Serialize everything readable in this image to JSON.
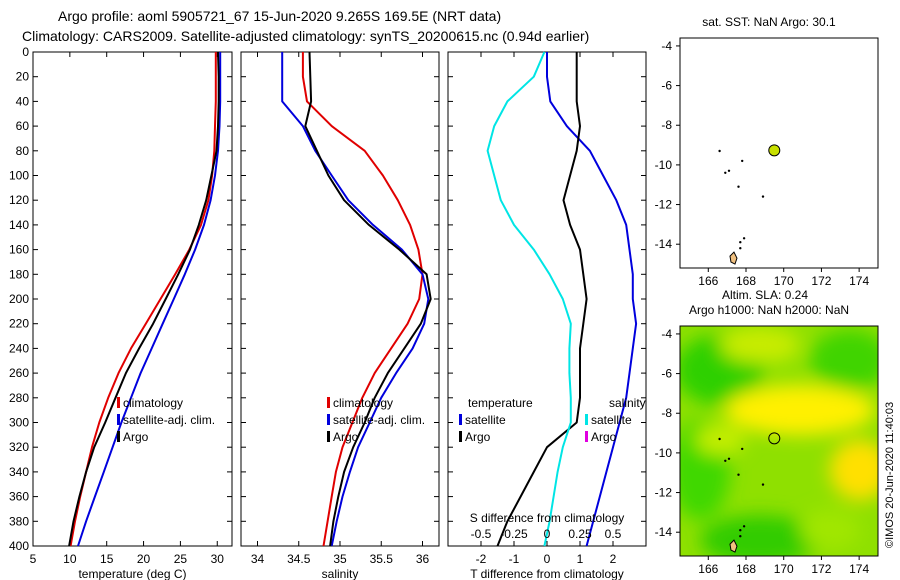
{
  "header": {
    "line1": "Argo profile: aoml 5905721_67 15-Jun-2020 9.265S 169.5E (NRT data)",
    "line2": "Climatology: CARS2009. Satellite-adjusted climatology: synTS_20200615.nc (0.94d earlier)"
  },
  "side_stamp": "©IMOS 20-Jun-2020 11:40:03",
  "colors": {
    "red": "#e00000",
    "blue": "#0000dd",
    "black": "#000000",
    "cyan": "#00e5e5",
    "magenta": "#e000e0",
    "marker": "#c8e000"
  },
  "chart_data": [
    {
      "id": "temperature",
      "type": "line",
      "xlabel": "temperature (deg C)",
      "xlim": [
        5,
        32
      ],
      "xticks": [
        5,
        10,
        15,
        20,
        25,
        30
      ],
      "ylim": [
        0,
        400
      ],
      "yticks": [
        0,
        20,
        40,
        60,
        80,
        100,
        120,
        140,
        160,
        180,
        200,
        220,
        240,
        260,
        280,
        300,
        320,
        340,
        360,
        380,
        400
      ],
      "legend": [
        {
          "label": "climatology",
          "color": "red"
        },
        {
          "label": "satellite-adj. clim.",
          "color": "blue"
        },
        {
          "label": "Argo",
          "color": "black"
        }
      ],
      "series": [
        {
          "name": "climatology",
          "color": "red",
          "points": [
            [
              29.8,
              0
            ],
            [
              29.8,
              20
            ],
            [
              29.8,
              40
            ],
            [
              29.7,
              60
            ],
            [
              29.6,
              80
            ],
            [
              29.3,
              100
            ],
            [
              28.8,
              120
            ],
            [
              27.8,
              140
            ],
            [
              26.2,
              160
            ],
            [
              24.3,
              180
            ],
            [
              22.3,
              200
            ],
            [
              20.3,
              220
            ],
            [
              18.3,
              240
            ],
            [
              16.6,
              260
            ],
            [
              15.2,
              280
            ],
            [
              14.0,
              300
            ],
            [
              13.0,
              320
            ],
            [
              12.2,
              340
            ],
            [
              11.4,
              360
            ],
            [
              10.7,
              380
            ],
            [
              10.1,
              400
            ]
          ]
        },
        {
          "name": "satellite-adj. clim.",
          "color": "blue",
          "points": [
            [
              30.4,
              0
            ],
            [
              30.4,
              20
            ],
            [
              30.4,
              40
            ],
            [
              30.3,
              60
            ],
            [
              30.1,
              80
            ],
            [
              29.7,
              100
            ],
            [
              29.1,
              120
            ],
            [
              28.2,
              140
            ],
            [
              27.0,
              160
            ],
            [
              25.6,
              180
            ],
            [
              24.1,
              200
            ],
            [
              22.6,
              220
            ],
            [
              21.1,
              240
            ],
            [
              19.6,
              260
            ],
            [
              18.3,
              280
            ],
            [
              17.0,
              300
            ],
            [
              15.8,
              320
            ],
            [
              14.6,
              340
            ],
            [
              13.4,
              360
            ],
            [
              12.2,
              380
            ],
            [
              11.1,
              400
            ]
          ]
        },
        {
          "name": "Argo",
          "color": "black",
          "points": [
            [
              30.1,
              0
            ],
            [
              30.2,
              20
            ],
            [
              30.2,
              40
            ],
            [
              30.1,
              60
            ],
            [
              29.9,
              80
            ],
            [
              29.2,
              100
            ],
            [
              28.5,
              120
            ],
            [
              27.5,
              140
            ],
            [
              26.3,
              160
            ],
            [
              24.7,
              180
            ],
            [
              23.0,
              200
            ],
            [
              21.3,
              220
            ],
            [
              19.4,
              240
            ],
            [
              17.6,
              260
            ],
            [
              16.2,
              280
            ],
            [
              14.8,
              300
            ],
            [
              13.3,
              320
            ],
            [
              12.2,
              340
            ],
            [
              11.3,
              360
            ],
            [
              10.5,
              380
            ],
            [
              9.9,
              400
            ]
          ]
        }
      ]
    },
    {
      "id": "salinity",
      "type": "line",
      "xlabel": "salinity",
      "xlim": [
        33.8,
        36.2
      ],
      "xticks": [
        34,
        34.5,
        35,
        35.5,
        36
      ],
      "ylim": [
        0,
        400
      ],
      "legend": [
        {
          "label": "climatology",
          "color": "red"
        },
        {
          "label": "satellite-adj. clim.",
          "color": "blue"
        },
        {
          "label": "Argo",
          "color": "black"
        }
      ],
      "series": [
        {
          "name": "climatology",
          "color": "red",
          "points": [
            [
              34.55,
              0
            ],
            [
              34.55,
              20
            ],
            [
              34.6,
              40
            ],
            [
              34.9,
              60
            ],
            [
              35.3,
              80
            ],
            [
              35.52,
              100
            ],
            [
              35.7,
              120
            ],
            [
              35.85,
              140
            ],
            [
              35.95,
              160
            ],
            [
              36.0,
              180
            ],
            [
              35.96,
              200
            ],
            [
              35.82,
              220
            ],
            [
              35.62,
              240
            ],
            [
              35.42,
              260
            ],
            [
              35.27,
              280
            ],
            [
              35.15,
              300
            ],
            [
              35.03,
              320
            ],
            [
              34.95,
              340
            ],
            [
              34.9,
              360
            ],
            [
              34.85,
              380
            ],
            [
              34.8,
              400
            ]
          ]
        },
        {
          "name": "satellite-adj. clim.",
          "color": "blue",
          "points": [
            [
              34.3,
              0
            ],
            [
              34.3,
              20
            ],
            [
              34.3,
              40
            ],
            [
              34.55,
              60
            ],
            [
              34.7,
              80
            ],
            [
              34.9,
              100
            ],
            [
              35.1,
              120
            ],
            [
              35.4,
              140
            ],
            [
              35.75,
              160
            ],
            [
              36.0,
              180
            ],
            [
              36.07,
              200
            ],
            [
              36.02,
              220
            ],
            [
              35.88,
              240
            ],
            [
              35.68,
              260
            ],
            [
              35.5,
              280
            ],
            [
              35.36,
              300
            ],
            [
              35.22,
              320
            ],
            [
              35.12,
              340
            ],
            [
              35.03,
              360
            ],
            [
              34.96,
              380
            ],
            [
              34.9,
              400
            ]
          ]
        },
        {
          "name": "Argo",
          "color": "black",
          "points": [
            [
              34.63,
              0
            ],
            [
              34.64,
              20
            ],
            [
              34.65,
              40
            ],
            [
              34.58,
              60
            ],
            [
              34.72,
              80
            ],
            [
              34.86,
              100
            ],
            [
              35.05,
              120
            ],
            [
              35.35,
              140
            ],
            [
              35.72,
              160
            ],
            [
              36.05,
              180
            ],
            [
              36.1,
              200
            ],
            [
              35.98,
              220
            ],
            [
              35.78,
              240
            ],
            [
              35.58,
              260
            ],
            [
              35.42,
              280
            ],
            [
              35.3,
              300
            ],
            [
              35.16,
              320
            ],
            [
              35.05,
              340
            ],
            [
              34.98,
              360
            ],
            [
              34.92,
              380
            ],
            [
              34.88,
              400
            ]
          ]
        }
      ]
    },
    {
      "id": "difference",
      "type": "line",
      "xlabel": "T difference from climatology",
      "xlabel2": "S difference from climatology",
      "xlim": [
        -3,
        3
      ],
      "xticks": [
        -2,
        -1,
        0,
        1,
        2
      ],
      "xlim2": [
        -0.75,
        0.75
      ],
      "xticks2": [
        -0.5,
        -0.25,
        0,
        0.25,
        0.5
      ],
      "xticklabels2": [
        "-0.5",
        "-0.25",
        "0",
        "0.25",
        "0.5"
      ],
      "ylim": [
        0,
        400
      ],
      "legend_left_title": "temperature",
      "legend_right_title": "salinity",
      "legend": [
        {
          "label": "satellite",
          "color": "blue",
          "side": "left"
        },
        {
          "label": "Argo",
          "color": "black",
          "side": "left"
        },
        {
          "label": "satellite",
          "color": "cyan",
          "side": "right"
        },
        {
          "label": "Argo",
          "color": "magenta",
          "side": "right"
        }
      ],
      "series": [
        {
          "name": "T satellite",
          "color": "blue",
          "axis": "T",
          "points": [
            [
              0.0,
              0
            ],
            [
              0.0,
              20
            ],
            [
              0.1,
              40
            ],
            [
              0.6,
              60
            ],
            [
              1.3,
              80
            ],
            [
              1.7,
              100
            ],
            [
              2.1,
              120
            ],
            [
              2.4,
              140
            ],
            [
              2.5,
              160
            ],
            [
              2.6,
              180
            ],
            [
              2.6,
              200
            ],
            [
              2.7,
              220
            ],
            [
              2.6,
              240
            ],
            [
              2.5,
              260
            ],
            [
              2.4,
              280
            ],
            [
              2.2,
              300
            ],
            [
              2.0,
              320
            ],
            [
              1.8,
              340
            ],
            [
              1.6,
              360
            ],
            [
              1.4,
              380
            ],
            [
              1.2,
              400
            ]
          ]
        },
        {
          "name": "T Argo",
          "color": "black",
          "axis": "T",
          "points": [
            [
              0.9,
              0
            ],
            [
              0.9,
              20
            ],
            [
              0.9,
              40
            ],
            [
              1.0,
              60
            ],
            [
              0.9,
              80
            ],
            [
              0.7,
              100
            ],
            [
              0.5,
              120
            ],
            [
              0.7,
              140
            ],
            [
              1.0,
              160
            ],
            [
              1.1,
              180
            ],
            [
              1.2,
              200
            ],
            [
              1.1,
              220
            ],
            [
              1.0,
              240
            ],
            [
              1.0,
              260
            ],
            [
              1.0,
              280
            ],
            [
              0.9,
              300
            ],
            [
              0.0,
              320
            ],
            [
              -0.4,
              340
            ],
            [
              -0.8,
              360
            ],
            [
              -1.2,
              380
            ],
            [
              -1.5,
              400
            ]
          ]
        },
        {
          "name": "S satellite",
          "color": "cyan",
          "axis": "S",
          "points": [
            [
              -0.02,
              0
            ],
            [
              -0.1,
              20
            ],
            [
              -0.3,
              40
            ],
            [
              -0.4,
              60
            ],
            [
              -0.45,
              80
            ],
            [
              -0.4,
              100
            ],
            [
              -0.35,
              120
            ],
            [
              -0.25,
              140
            ],
            [
              -0.1,
              160
            ],
            [
              0.02,
              180
            ],
            [
              0.12,
              200
            ],
            [
              0.18,
              220
            ],
            [
              0.17,
              240
            ],
            [
              0.17,
              260
            ],
            [
              0.18,
              280
            ],
            [
              0.18,
              300
            ],
            [
              0.12,
              320
            ],
            [
              0.08,
              340
            ],
            [
              0.05,
              360
            ],
            [
              0.02,
              380
            ],
            [
              -0.02,
              400
            ]
          ]
        }
      ]
    },
    {
      "id": "sst_map",
      "type": "scatter",
      "title": "sat. SST: NaN Argo: 30.1",
      "xlim": [
        164.5,
        175
      ],
      "ylim": [
        -15.2,
        -3.6
      ],
      "xticks": [
        166,
        168,
        170,
        172,
        174
      ],
      "yticks": [
        -4,
        -6,
        -8,
        -10,
        -12,
        -14
      ],
      "footer": "Altim. SLA: 0.24",
      "profile_location": {
        "lon": 169.5,
        "lat": -9.265
      }
    },
    {
      "id": "h_map",
      "type": "heatmap",
      "title": "Argo h1000: NaN h2000: NaN",
      "xlim": [
        164.5,
        175
      ],
      "ylim": [
        -15.2,
        -3.6
      ],
      "xticks": [
        166,
        168,
        170,
        172,
        174
      ],
      "yticks": [
        -4,
        -6,
        -8,
        -10,
        -12,
        -14
      ],
      "profile_location": {
        "lon": 169.5,
        "lat": -9.265
      }
    }
  ]
}
